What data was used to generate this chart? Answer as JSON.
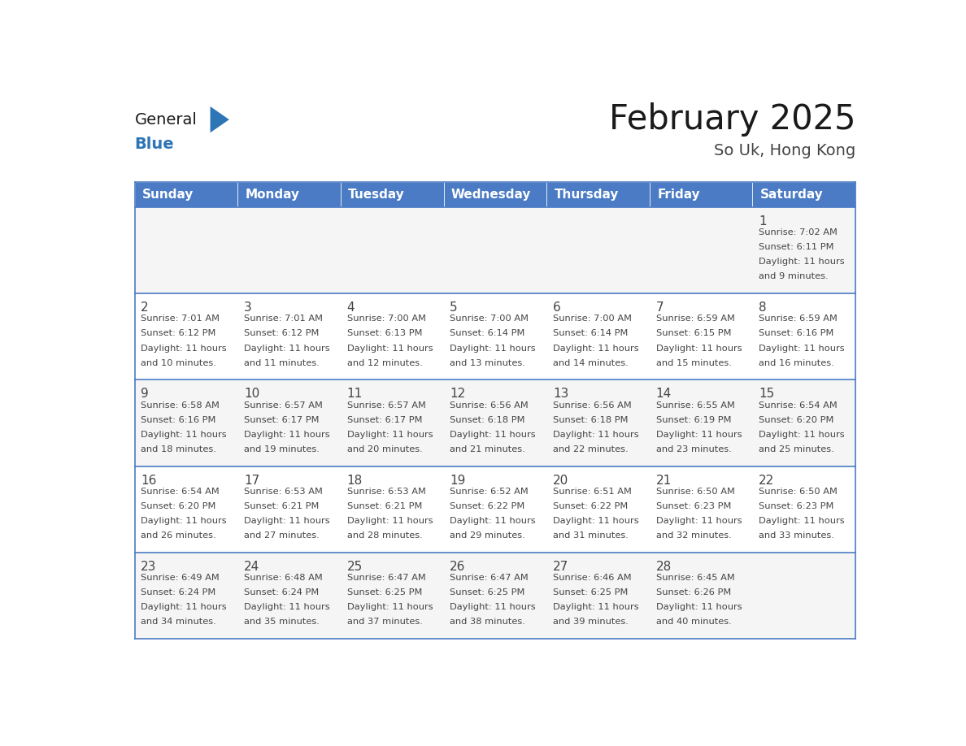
{
  "title": "February 2025",
  "subtitle": "So Uk, Hong Kong",
  "days_of_week": [
    "Sunday",
    "Monday",
    "Tuesday",
    "Wednesday",
    "Thursday",
    "Friday",
    "Saturday"
  ],
  "header_bg": "#4a7bc4",
  "header_text_color": "#FFFFFF",
  "cell_bg_white": "#FFFFFF",
  "cell_bg_gray": "#F5F5F5",
  "row_border_color": "#4a7bc4",
  "cell_border_color": "#CCCCCC",
  "text_color": "#444444",
  "title_color": "#1a1a1a",
  "subtitle_color": "#444444",
  "logo_general_color": "#1a1a1a",
  "logo_blue_color": "#2E75B6",
  "calendar_data": [
    [
      null,
      null,
      null,
      null,
      null,
      null,
      {
        "day": 1,
        "sunrise": "7:02 AM",
        "sunset": "6:11 PM",
        "daylight": "11 hours and 9 minutes."
      }
    ],
    [
      {
        "day": 2,
        "sunrise": "7:01 AM",
        "sunset": "6:12 PM",
        "daylight": "11 hours and 10 minutes."
      },
      {
        "day": 3,
        "sunrise": "7:01 AM",
        "sunset": "6:12 PM",
        "daylight": "11 hours and 11 minutes."
      },
      {
        "day": 4,
        "sunrise": "7:00 AM",
        "sunset": "6:13 PM",
        "daylight": "11 hours and 12 minutes."
      },
      {
        "day": 5,
        "sunrise": "7:00 AM",
        "sunset": "6:14 PM",
        "daylight": "11 hours and 13 minutes."
      },
      {
        "day": 6,
        "sunrise": "7:00 AM",
        "sunset": "6:14 PM",
        "daylight": "11 hours and 14 minutes."
      },
      {
        "day": 7,
        "sunrise": "6:59 AM",
        "sunset": "6:15 PM",
        "daylight": "11 hours and 15 minutes."
      },
      {
        "day": 8,
        "sunrise": "6:59 AM",
        "sunset": "6:16 PM",
        "daylight": "11 hours and 16 minutes."
      }
    ],
    [
      {
        "day": 9,
        "sunrise": "6:58 AM",
        "sunset": "6:16 PM",
        "daylight": "11 hours and 18 minutes."
      },
      {
        "day": 10,
        "sunrise": "6:57 AM",
        "sunset": "6:17 PM",
        "daylight": "11 hours and 19 minutes."
      },
      {
        "day": 11,
        "sunrise": "6:57 AM",
        "sunset": "6:17 PM",
        "daylight": "11 hours and 20 minutes."
      },
      {
        "day": 12,
        "sunrise": "6:56 AM",
        "sunset": "6:18 PM",
        "daylight": "11 hours and 21 minutes."
      },
      {
        "day": 13,
        "sunrise": "6:56 AM",
        "sunset": "6:18 PM",
        "daylight": "11 hours and 22 minutes."
      },
      {
        "day": 14,
        "sunrise": "6:55 AM",
        "sunset": "6:19 PM",
        "daylight": "11 hours and 23 minutes."
      },
      {
        "day": 15,
        "sunrise": "6:54 AM",
        "sunset": "6:20 PM",
        "daylight": "11 hours and 25 minutes."
      }
    ],
    [
      {
        "day": 16,
        "sunrise": "6:54 AM",
        "sunset": "6:20 PM",
        "daylight": "11 hours and 26 minutes."
      },
      {
        "day": 17,
        "sunrise": "6:53 AM",
        "sunset": "6:21 PM",
        "daylight": "11 hours and 27 minutes."
      },
      {
        "day": 18,
        "sunrise": "6:53 AM",
        "sunset": "6:21 PM",
        "daylight": "11 hours and 28 minutes."
      },
      {
        "day": 19,
        "sunrise": "6:52 AM",
        "sunset": "6:22 PM",
        "daylight": "11 hours and 29 minutes."
      },
      {
        "day": 20,
        "sunrise": "6:51 AM",
        "sunset": "6:22 PM",
        "daylight": "11 hours and 31 minutes."
      },
      {
        "day": 21,
        "sunrise": "6:50 AM",
        "sunset": "6:23 PM",
        "daylight": "11 hours and 32 minutes."
      },
      {
        "day": 22,
        "sunrise": "6:50 AM",
        "sunset": "6:23 PM",
        "daylight": "11 hours and 33 minutes."
      }
    ],
    [
      {
        "day": 23,
        "sunrise": "6:49 AM",
        "sunset": "6:24 PM",
        "daylight": "11 hours and 34 minutes."
      },
      {
        "day": 24,
        "sunrise": "6:48 AM",
        "sunset": "6:24 PM",
        "daylight": "11 hours and 35 minutes."
      },
      {
        "day": 25,
        "sunrise": "6:47 AM",
        "sunset": "6:25 PM",
        "daylight": "11 hours and 37 minutes."
      },
      {
        "day": 26,
        "sunrise": "6:47 AM",
        "sunset": "6:25 PM",
        "daylight": "11 hours and 38 minutes."
      },
      {
        "day": 27,
        "sunrise": "6:46 AM",
        "sunset": "6:25 PM",
        "daylight": "11 hours and 39 minutes."
      },
      {
        "day": 28,
        "sunrise": "6:45 AM",
        "sunset": "6:26 PM",
        "daylight": "11 hours and 40 minutes."
      },
      null
    ]
  ]
}
